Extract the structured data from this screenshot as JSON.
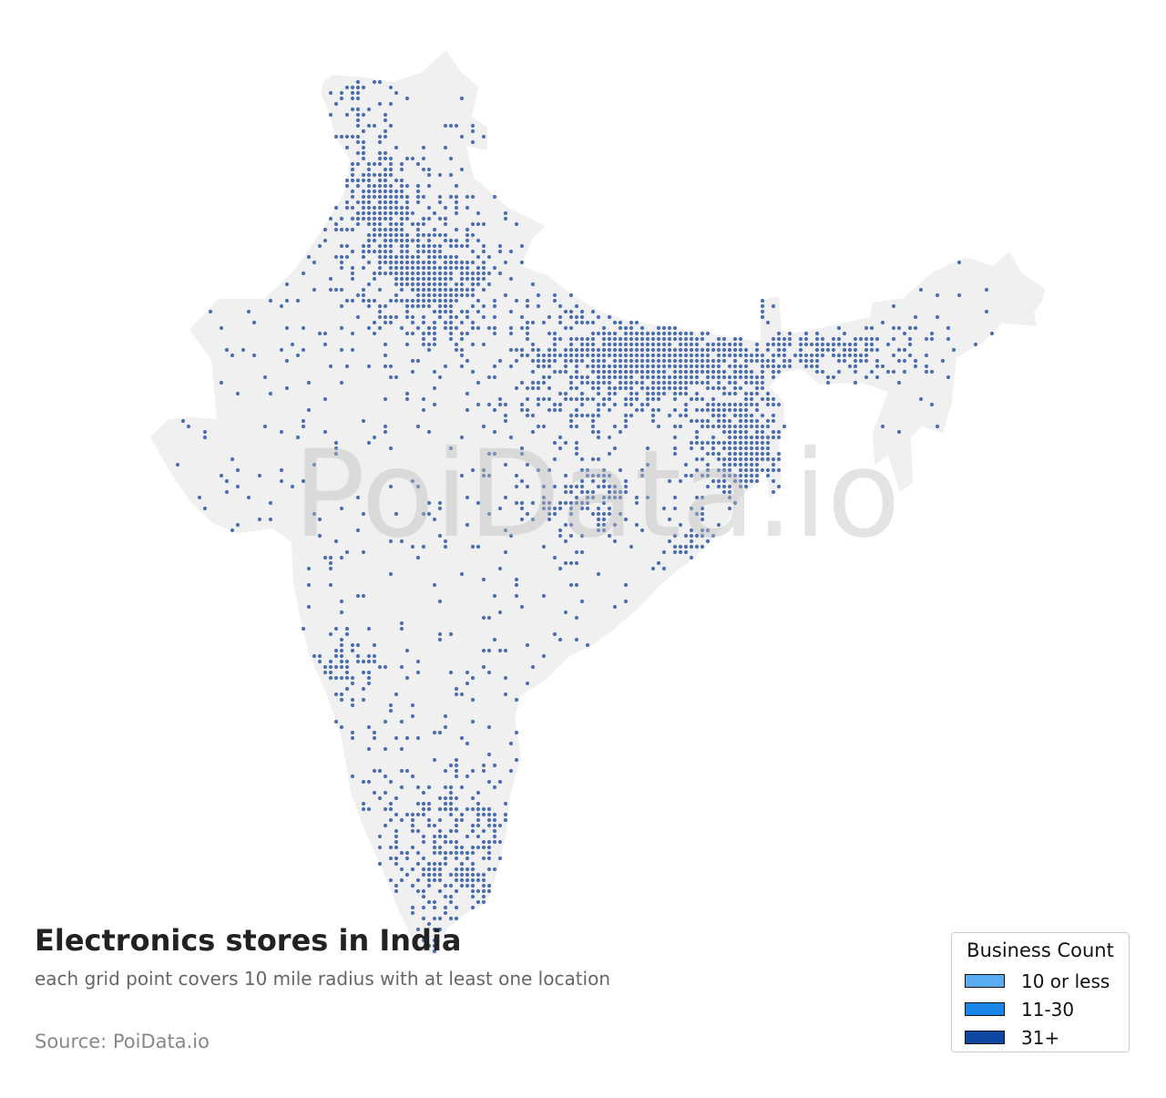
{
  "title": "Electronics stores in India",
  "subtitle": "each grid point covers 10 mile radius with at least one location",
  "source": "Source: PoiData.io",
  "watermark": "PoiData.io",
  "colors": {
    "land": "#f0f0f0",
    "dot": "#4a6fb5",
    "watermark": "#bdbdbd"
  },
  "legend": {
    "title": "Business Count",
    "items": [
      {
        "label": "10 or less",
        "color": "#5aabef"
      },
      {
        "label": "11-30",
        "color": "#1c86e8"
      },
      {
        "label": "31+",
        "color": "#0d47a1"
      }
    ]
  }
}
